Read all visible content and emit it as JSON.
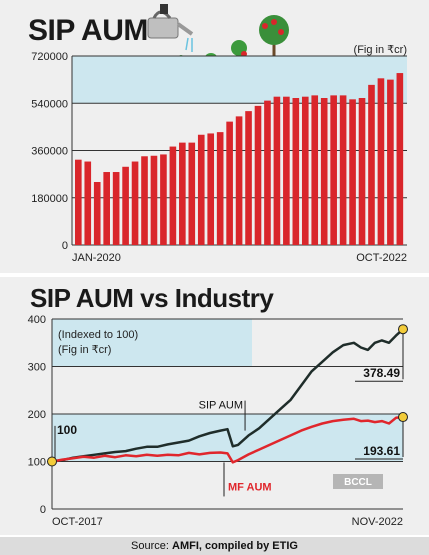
{
  "top_title": "SIP AUM",
  "top_unit": "(Fig in ₹cr)",
  "bottom_title": "SIP AUM vs Industry",
  "bottom_note1": "(Indexed to 100)",
  "bottom_note2": "(Fig in ₹cr)",
  "badge": "BCCL",
  "footer": {
    "prefix": "Source:",
    "source": "AMFI, compiled by ETIG"
  },
  "colors": {
    "bar": "#d9262b",
    "sip_line": "#1f2d2a",
    "mf_line": "#e0262c",
    "shade": "#cde7ef",
    "marker": "#f3cc3a"
  },
  "chart_data": [
    {
      "type": "bar",
      "title": "SIP AUM",
      "unit": "(Fig in ₹cr)",
      "x_start_label": "JAN-2020",
      "x_end_label": "OCT-2022",
      "y_ticks": [
        "0",
        "180000",
        "360000",
        "540000",
        "720000"
      ],
      "ylim": [
        0,
        720000
      ],
      "values": [
        325000,
        318000,
        240000,
        278000,
        278000,
        298000,
        318000,
        338000,
        340000,
        345000,
        375000,
        390000,
        390000,
        420000,
        425000,
        430000,
        470000,
        490000,
        510000,
        530000,
        550000,
        565000,
        565000,
        560000,
        565000,
        570000,
        560000,
        570000,
        570000,
        555000,
        560000,
        610000,
        635000,
        630000,
        655000
      ],
      "shaded_band": [
        540000,
        720000
      ]
    },
    {
      "type": "line",
      "title": "SIP AUM vs Industry",
      "x_start_label": "OCT-2017",
      "x_end_label": "NOV-2022",
      "y_ticks": [
        "0",
        "100",
        "200",
        "300",
        "400"
      ],
      "ylim": [
        0,
        400
      ],
      "start_label": "100",
      "series": [
        {
          "name": "SIP AUM",
          "end_label": "378.49",
          "points": [
            [
              0,
              100
            ],
            [
              0.03,
              103
            ],
            [
              0.06,
              108
            ],
            [
              0.09,
              111
            ],
            [
              0.12,
              114
            ],
            [
              0.15,
              117
            ],
            [
              0.18,
              120
            ],
            [
              0.21,
              122
            ],
            [
              0.24,
              127
            ],
            [
              0.27,
              131
            ],
            [
              0.3,
              131
            ],
            [
              0.33,
              136
            ],
            [
              0.36,
              140
            ],
            [
              0.39,
              144
            ],
            [
              0.42,
              153
            ],
            [
              0.45,
              160
            ],
            [
              0.48,
              165
            ],
            [
              0.5,
              168
            ],
            [
              0.515,
              132
            ],
            [
              0.53,
              135
            ],
            [
              0.56,
              155
            ],
            [
              0.59,
              170
            ],
            [
              0.62,
              190
            ],
            [
              0.65,
              210
            ],
            [
              0.68,
              230
            ],
            [
              0.71,
              260
            ],
            [
              0.74,
              290
            ],
            [
              0.77,
              310
            ],
            [
              0.8,
              330
            ],
            [
              0.83,
              345
            ],
            [
              0.86,
              350
            ],
            [
              0.88,
              340
            ],
            [
              0.9,
              335
            ],
            [
              0.92,
              350
            ],
            [
              0.94,
              355
            ],
            [
              0.96,
              350
            ],
            [
              0.98,
              365
            ],
            [
              1.0,
              378.49
            ]
          ]
        },
        {
          "name": "MF AUM",
          "end_label": "193.61",
          "points": [
            [
              0,
              100
            ],
            [
              0.03,
              104
            ],
            [
              0.06,
              107
            ],
            [
              0.09,
              110
            ],
            [
              0.12,
              108
            ],
            [
              0.15,
              112
            ],
            [
              0.18,
              109
            ],
            [
              0.21,
              113
            ],
            [
              0.24,
              111
            ],
            [
              0.27,
              114
            ],
            [
              0.3,
              112
            ],
            [
              0.33,
              114
            ],
            [
              0.36,
              113
            ],
            [
              0.39,
              118
            ],
            [
              0.42,
              115
            ],
            [
              0.45,
              118
            ],
            [
              0.48,
              119
            ],
            [
              0.5,
              117
            ],
            [
              0.515,
              98
            ],
            [
              0.53,
              103
            ],
            [
              0.56,
              115
            ],
            [
              0.59,
              125
            ],
            [
              0.62,
              135
            ],
            [
              0.65,
              145
            ],
            [
              0.68,
              155
            ],
            [
              0.71,
              165
            ],
            [
              0.74,
              173
            ],
            [
              0.77,
              180
            ],
            [
              0.8,
              185
            ],
            [
              0.83,
              188
            ],
            [
              0.86,
              190
            ],
            [
              0.88,
              185
            ],
            [
              0.9,
              186
            ],
            [
              0.92,
              183
            ],
            [
              0.94,
              185
            ],
            [
              0.96,
              180
            ],
            [
              0.98,
              192
            ],
            [
              1.0,
              193.61
            ]
          ]
        }
      ],
      "shaded_band": [
        100,
        200
      ]
    }
  ]
}
